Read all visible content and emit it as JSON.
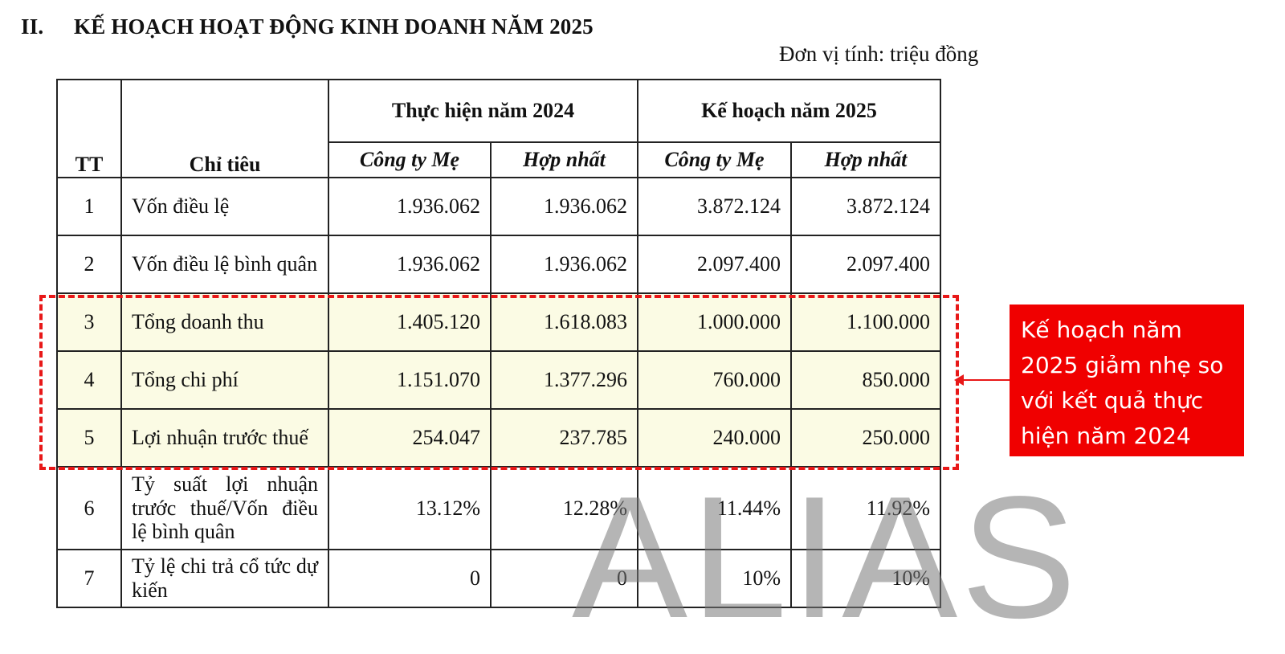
{
  "heading": {
    "number": "II.",
    "title": "KẾ HOẠCH HOẠT ĐỘNG KINH DOANH NĂM 2025"
  },
  "unit_note": "Đơn vị tính: triệu đồng",
  "table": {
    "headers": {
      "tt": "TT",
      "indicator": "Chỉ tiêu",
      "group_2024": "Thực hiện năm 2024",
      "group_2025": "Kế hoạch năm 2025",
      "parent": "Công ty Mẹ",
      "consolidated": "Hợp nhất"
    },
    "rows": [
      {
        "tt": "1",
        "name": "Vốn điều lệ",
        "v2024_parent": "1.936.062",
        "v2024_cons": "1.936.062",
        "v2025_parent": "3.872.124",
        "v2025_cons": "3.872.124"
      },
      {
        "tt": "2",
        "name": "Vốn điều lệ bình quân",
        "v2024_parent": "1.936.062",
        "v2024_cons": "1.936.062",
        "v2025_parent": "2.097.400",
        "v2025_cons": "2.097.400"
      },
      {
        "tt": "3",
        "name": "Tổng doanh thu",
        "v2024_parent": "1.405.120",
        "v2024_cons": "1.618.083",
        "v2025_parent": "1.000.000",
        "v2025_cons": "1.100.000"
      },
      {
        "tt": "4",
        "name": "Tổng chi phí",
        "v2024_parent": "1.151.070",
        "v2024_cons": "1.377.296",
        "v2025_parent": "760.000",
        "v2025_cons": "850.000"
      },
      {
        "tt": "5",
        "name": "Lợi nhuận trước thuế",
        "v2024_parent": "254.047",
        "v2024_cons": "237.785",
        "v2025_parent": "240.000",
        "v2025_cons": "250.000"
      },
      {
        "tt": "6",
        "name": "Tỷ suất lợi nhuận trước thuế/Vốn điều lệ bình quân",
        "v2024_parent": "13.12%",
        "v2024_cons": "12.28%",
        "v2025_parent": "11.44%",
        "v2025_cons": "11.92%"
      },
      {
        "tt": "7",
        "name": "Tỷ lệ chi trả cổ tức dự kiến",
        "v2024_parent": "0",
        "v2024_cons": "0",
        "v2025_parent": "10%",
        "v2025_cons": "10%"
      }
    ]
  },
  "callout": {
    "text": "Kế hoạch năm 2025 giảm nhẹ so với kết quả thực hiện năm 2024",
    "color": "#f00000"
  },
  "highlight": {
    "border_color": "#e81818",
    "fill_color": "#fbfbe4"
  },
  "watermark": "ALIAS"
}
